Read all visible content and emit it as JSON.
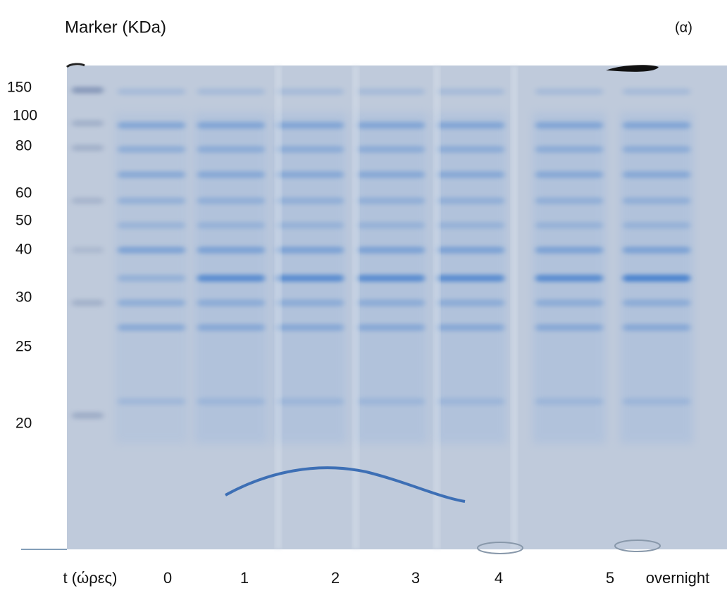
{
  "header": {
    "title": "Marker (KDa)",
    "panel": "(α)"
  },
  "marker_labels": [
    "150",
    "100",
    "80",
    "60",
    "50",
    "40",
    "30",
    "25",
    "20"
  ],
  "lanes": {
    "axis_label": "t (ώρες)",
    "labels": [
      "0",
      "1",
      "2",
      "3",
      "4",
      "5",
      "overnight"
    ]
  }
}
